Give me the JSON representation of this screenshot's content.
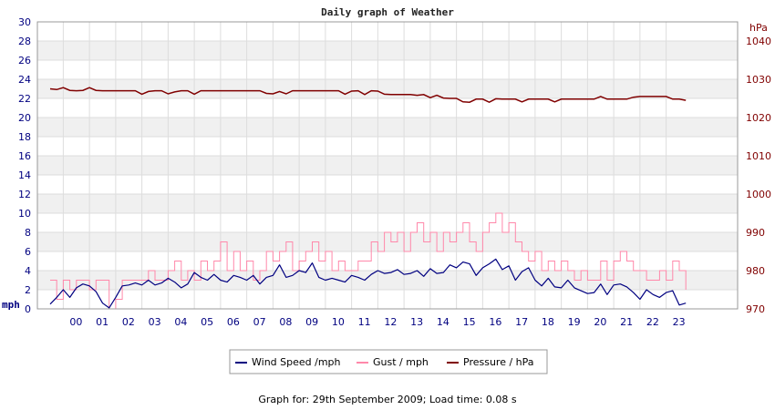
{
  "chart_data": {
    "type": "line",
    "title": "Daily graph of Weather",
    "left_axis": {
      "unit": "mph",
      "ylim": [
        0,
        30
      ],
      "ticks": [
        0,
        2,
        4,
        6,
        8,
        10,
        12,
        14,
        16,
        18,
        20,
        22,
        24,
        26,
        28,
        30
      ]
    },
    "right_axis": {
      "unit": "hPa",
      "ylim": [
        970,
        1045
      ],
      "ticks": [
        970,
        980,
        990,
        1000,
        1010,
        1020,
        1030,
        1040
      ]
    },
    "x_labels": [
      "00",
      "01",
      "02",
      "03",
      "04",
      "05",
      "06",
      "07",
      "08",
      "09",
      "10",
      "11",
      "12",
      "13",
      "14",
      "15",
      "16",
      "17",
      "18",
      "19",
      "20",
      "21",
      "22",
      "23"
    ],
    "grid": true,
    "legend_position": "bottom-center",
    "series": [
      {
        "name": "Wind Speed /mph",
        "axis": "left",
        "color": "#000080",
        "x": [
          -0.5,
          -0.25,
          0,
          0.25,
          0.5,
          0.75,
          1,
          1.25,
          1.5,
          1.75,
          2,
          2.25,
          2.5,
          2.75,
          3,
          3.25,
          3.5,
          3.75,
          4,
          4.25,
          4.5,
          4.75,
          5,
          5.25,
          5.5,
          5.75,
          6,
          6.25,
          6.5,
          6.75,
          7,
          7.25,
          7.5,
          7.75,
          8,
          8.25,
          8.5,
          8.75,
          9,
          9.25,
          9.5,
          9.75,
          10,
          10.25,
          10.5,
          10.75,
          11,
          11.25,
          11.5,
          11.75,
          12,
          12.25,
          12.5,
          12.75,
          13,
          13.25,
          13.5,
          13.75,
          14,
          14.25,
          14.5,
          14.75,
          15,
          15.25,
          15.5,
          15.75,
          16,
          16.25,
          16.5,
          16.75,
          17,
          17.25,
          17.5,
          17.75,
          18,
          18.25,
          18.5,
          18.75,
          19,
          19.25,
          19.5,
          19.75,
          20,
          20.25,
          20.5,
          20.75,
          21,
          21.25,
          21.5,
          21.75,
          22,
          22.25,
          22.5,
          22.75,
          23,
          23.25,
          23.5,
          23.75
        ],
        "values": [
          0.5,
          1.2,
          2.0,
          1.2,
          2.2,
          2.6,
          2.4,
          1.8,
          0.6,
          0.1,
          1.2,
          2.4,
          2.5,
          2.7,
          2.5,
          3.0,
          2.5,
          2.7,
          3.2,
          2.8,
          2.2,
          2.6,
          3.8,
          3.3,
          3.0,
          3.6,
          3.0,
          2.8,
          3.5,
          3.3,
          3.0,
          3.5,
          2.6,
          3.3,
          3.5,
          4.6,
          3.3,
          3.5,
          4.0,
          3.8,
          4.8,
          3.3,
          3.0,
          3.2,
          3.0,
          2.8,
          3.5,
          3.3,
          3.0,
          3.6,
          4.0,
          3.7,
          3.8,
          4.1,
          3.6,
          3.7,
          4.0,
          3.4,
          4.2,
          3.7,
          3.8,
          4.6,
          4.3,
          4.9,
          4.7,
          3.5,
          4.3,
          4.7,
          5.2,
          4.1,
          4.5,
          3.0,
          3.9,
          4.3,
          3.0,
          2.4,
          3.2,
          2.3,
          2.2,
          3.0,
          2.2,
          1.9,
          1.6,
          1.7,
          2.6,
          1.5,
          2.5,
          2.6,
          2.3,
          1.7,
          1.0,
          2.0,
          1.5,
          1.2,
          1.7,
          1.9,
          0.4,
          0.6
        ]
      },
      {
        "name": "Gust / mph",
        "axis": "left",
        "color": "#ff88aa",
        "x": [
          -0.5,
          -0.25,
          0,
          0.25,
          0.5,
          0.75,
          1,
          1.25,
          1.5,
          1.75,
          2,
          2.25,
          2.5,
          2.75,
          3,
          3.25,
          3.5,
          3.75,
          4,
          4.25,
          4.5,
          4.75,
          5,
          5.25,
          5.5,
          5.75,
          6,
          6.25,
          6.5,
          6.75,
          7,
          7.25,
          7.5,
          7.75,
          8,
          8.25,
          8.5,
          8.75,
          9,
          9.25,
          9.5,
          9.75,
          10,
          10.25,
          10.5,
          10.75,
          11,
          11.25,
          11.5,
          11.75,
          12,
          12.25,
          12.5,
          12.75,
          13,
          13.25,
          13.5,
          13.75,
          14,
          14.25,
          14.5,
          14.75,
          15,
          15.25,
          15.5,
          15.75,
          16,
          16.25,
          16.5,
          16.75,
          17,
          17.25,
          17.5,
          17.75,
          18,
          18.25,
          18.5,
          18.75,
          19,
          19.25,
          19.5,
          19.75,
          20,
          20.25,
          20.5,
          20.75,
          21,
          21.25,
          21.5,
          21.75,
          22,
          22.25,
          22.5,
          22.75,
          23,
          23.25,
          23.5,
          23.75
        ],
        "values": [
          3,
          1,
          3,
          2,
          3,
          3,
          2,
          3,
          3,
          0,
          1,
          3,
          3,
          3,
          3,
          4,
          3,
          3,
          4,
          5,
          3,
          4,
          3,
          5,
          4,
          5,
          7,
          4,
          6,
          4,
          5,
          3,
          4,
          6,
          5,
          6,
          7,
          4,
          5,
          6,
          7,
          5,
          6,
          4,
          5,
          4,
          4,
          5,
          5,
          7,
          6,
          8,
          7,
          8,
          6,
          8,
          9,
          7,
          8,
          6,
          8,
          7,
          8,
          9,
          7,
          6,
          8,
          9,
          10,
          8,
          9,
          7,
          6,
          5,
          6,
          4,
          5,
          4,
          5,
          4,
          3,
          4,
          3,
          3,
          5,
          3,
          5,
          6,
          5,
          4,
          4,
          3,
          3,
          4,
          3,
          5,
          4,
          2
        ]
      },
      {
        "name": "Pressure / hPa",
        "axis": "right",
        "color": "#800000",
        "x": [
          -0.5,
          -0.25,
          0,
          0.25,
          0.5,
          0.75,
          1,
          1.25,
          1.5,
          1.75,
          2,
          2.25,
          2.5,
          2.75,
          3,
          3.25,
          3.5,
          3.75,
          4,
          4.25,
          4.5,
          4.75,
          5,
          5.25,
          5.5,
          5.75,
          6,
          6.25,
          6.5,
          6.75,
          7,
          7.25,
          7.5,
          7.75,
          8,
          8.25,
          8.5,
          8.75,
          9,
          9.25,
          9.5,
          9.75,
          10,
          10.25,
          10.5,
          10.75,
          11,
          11.25,
          11.5,
          11.75,
          12,
          12.25,
          12.5,
          12.75,
          13,
          13.25,
          13.5,
          13.75,
          14,
          14.25,
          14.5,
          14.75,
          15,
          15.25,
          15.5,
          15.75,
          16,
          16.25,
          16.5,
          16.75,
          17,
          17.25,
          17.5,
          17.75,
          18,
          18.25,
          18.5,
          18.75,
          19,
          19.25,
          19.5,
          19.75,
          20,
          20.25,
          20.5,
          20.75,
          21,
          21.25,
          21.5,
          21.75,
          22,
          22.25,
          22.5,
          22.75,
          23,
          23.25,
          23.5,
          23.75
        ],
        "values": [
          1027.5,
          1027.3,
          1027.8,
          1027.1,
          1027.0,
          1027.1,
          1027.8,
          1027.1,
          1027.0,
          1027.0,
          1027.0,
          1027.0,
          1027.0,
          1027.0,
          1026.1,
          1026.8,
          1027.0,
          1027.0,
          1026.2,
          1026.7,
          1027.0,
          1027.0,
          1026.1,
          1027.0,
          1027.0,
          1027.0,
          1027.0,
          1027.0,
          1027.0,
          1027.0,
          1027.0,
          1027.0,
          1027.0,
          1026.3,
          1026.2,
          1026.8,
          1026.2,
          1027.0,
          1027.0,
          1027.0,
          1027.0,
          1027.0,
          1027.0,
          1027.0,
          1027.0,
          1026.1,
          1026.9,
          1027.0,
          1026.0,
          1027.0,
          1026.9,
          1026.1,
          1026.0,
          1026.0,
          1026.0,
          1026.0,
          1025.8,
          1026.0,
          1025.2,
          1025.8,
          1025.1,
          1025.0,
          1025.0,
          1024.1,
          1024.0,
          1024.8,
          1024.8,
          1024.0,
          1024.9,
          1024.8,
          1024.8,
          1024.8,
          1024.1,
          1024.8,
          1024.8,
          1024.8,
          1024.8,
          1024.1,
          1024.8,
          1024.8,
          1024.8,
          1024.8,
          1024.8,
          1024.8,
          1025.5,
          1024.8,
          1024.8,
          1024.8,
          1024.8,
          1025.3,
          1025.5,
          1025.5,
          1025.5,
          1025.5,
          1025.5,
          1024.8,
          1024.8,
          1024.5
        ]
      }
    ]
  },
  "footer_text": "Graph for: 29th September 2009; Load time: 0.08 s"
}
